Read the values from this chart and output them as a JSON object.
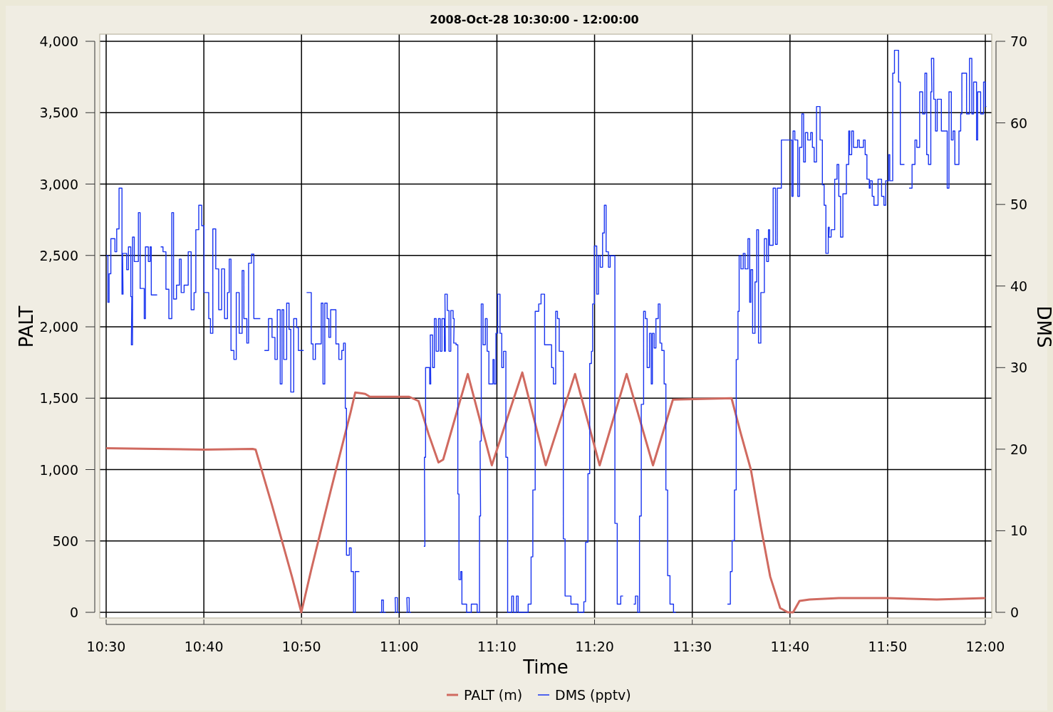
{
  "chart_data": {
    "type": "line",
    "title": "2008-Oct-28 10:30:00 - 12:00:00",
    "xlabel": "Time",
    "ylabel": "PALT",
    "y2label": "DMS",
    "grid": true,
    "legend": "bottom",
    "xlim": [
      10.5,
      12
    ],
    "xticks": [
      {
        "value": 10.5,
        "label": "10:30"
      },
      {
        "value": 10.6667,
        "label": "10:40"
      },
      {
        "value": 10.8333,
        "label": "10:50"
      },
      {
        "value": 11,
        "label": "11:00"
      },
      {
        "value": 11.1667,
        "label": "11:10"
      },
      {
        "value": 11.3333,
        "label": "11:20"
      },
      {
        "value": 11.5,
        "label": "11:30"
      },
      {
        "value": 11.6667,
        "label": "11:40"
      },
      {
        "value": 11.8333,
        "label": "11:50"
      },
      {
        "value": 12,
        "label": "12:00"
      }
    ],
    "ylim": [
      0,
      4000
    ],
    "yticks": [
      0,
      500,
      {
        "value": 1000,
        "label": "1,000"
      },
      {
        "value": 1500,
        "label": "1,500"
      },
      {
        "value": 2000,
        "label": "2,000"
      },
      {
        "value": 2500,
        "label": "2,500"
      },
      {
        "value": 3000,
        "label": "3,000"
      },
      {
        "value": 3500,
        "label": "3,500"
      },
      {
        "value": 4000,
        "label": "4,000"
      }
    ],
    "y2lim": [
      0,
      70
    ],
    "y2ticks": [
      0,
      10,
      20,
      30,
      40,
      50,
      60,
      70
    ],
    "series": [
      {
        "name": "PALT (m)",
        "color": "#d06a60",
        "x": [
          10.5,
          10.583,
          10.667,
          10.75,
          10.755,
          10.783,
          10.817,
          10.833,
          10.85,
          10.883,
          10.917,
          10.925,
          10.942,
          10.95,
          11.017,
          11.033,
          11.05,
          11.067,
          11.075,
          11.117,
          11.158,
          11.21,
          11.25,
          11.3,
          11.342,
          11.388,
          11.433,
          11.467,
          11.567,
          11.583,
          11.6,
          11.617,
          11.633,
          11.65,
          11.663,
          11.672,
          11.683,
          11.7,
          11.75,
          11.833,
          11.917,
          12
        ],
        "values": [
          1150,
          1145,
          1140,
          1145,
          1140,
          750,
          250,
          0,
          300,
          850,
          1400,
          1540,
          1530,
          1510,
          1510,
          1480,
          1250,
          1050,
          1070,
          1670,
          1030,
          1680,
          1030,
          1670,
          1030,
          1670,
          1030,
          1490,
          1500,
          1250,
          1000,
          600,
          250,
          30,
          0,
          0,
          80,
          90,
          100,
          100,
          90,
          100
        ]
      },
      {
        "name": "DMS (pptv)",
        "color": "#1a35f0",
        "type": "step",
        "axis": "y2",
        "x": [
          10.5,
          10.503,
          10.505,
          10.508,
          10.515,
          10.518,
          10.522,
          10.527,
          10.528,
          10.535,
          10.538,
          10.542,
          10.543,
          10.545,
          10.548,
          10.555,
          10.558,
          10.565,
          10.567,
          10.572,
          10.575,
          10.577,
          10.582,
          10.587,
          10.593,
          10.597,
          10.602,
          10.607,
          10.612,
          10.615,
          10.62,
          10.625,
          10.628,
          10.633,
          10.64,
          10.645,
          10.65,
          10.653,
          10.658,
          10.663,
          10.667,
          10.675,
          10.678,
          10.682,
          10.687,
          10.692,
          10.697,
          10.702,
          10.707,
          10.71,
          10.713,
          10.718,
          10.722,
          10.727,
          10.732,
          10.735,
          10.74,
          10.743,
          10.748,
          10.752,
          10.755,
          10.763,
          10.77,
          10.777,
          10.783,
          10.788,
          10.792,
          10.797,
          10.8,
          10.803,
          10.808,
          10.812,
          10.815,
          10.82,
          10.825,
          10.828,
          10.837,
          10.842,
          10.85,
          10.853,
          10.857,
          10.867,
          10.87,
          10.873,
          10.877,
          10.88,
          10.883,
          10.892,
          10.897,
          10.902,
          10.905,
          10.908,
          10.91,
          10.915,
          10.918,
          10.922,
          10.925,
          10.928,
          10.932,
          10.967,
          10.97,
          10.973,
          10.977,
          10.992,
          10.993,
          10.997,
          11.0,
          11.012,
          11.013,
          11.017,
          11.02,
          11.032,
          11.042,
          11.043,
          11.045,
          11.052,
          11.053,
          11.057,
          11.06,
          11.063,
          11.067,
          11.07,
          11.073,
          11.077,
          11.078,
          11.082,
          11.085,
          11.088,
          11.092,
          11.093,
          11.097,
          11.1,
          11.102,
          11.105,
          11.107,
          11.115,
          11.123,
          11.133,
          11.137,
          11.138,
          11.14,
          11.143,
          11.147,
          11.15,
          11.153,
          11.16,
          11.162,
          11.165,
          11.168,
          11.172,
          11.175,
          11.178,
          11.182,
          11.185,
          11.192,
          11.195,
          11.2,
          11.203,
          11.22,
          11.225,
          11.228,
          11.232,
          11.238,
          11.242,
          11.245,
          11.248,
          11.26,
          11.263,
          11.267,
          11.27,
          11.273,
          11.277,
          11.28,
          11.283,
          11.293,
          11.3,
          11.305,
          11.315,
          11.318,
          11.322,
          11.325,
          11.328,
          11.33,
          11.333,
          11.337,
          11.34,
          11.343,
          11.347,
          11.35,
          11.353,
          11.357,
          11.36,
          11.365,
          11.368,
          11.372,
          11.378,
          11.382,
          11.4,
          11.403,
          11.407,
          11.41,
          11.413,
          11.417,
          11.42,
          11.423,
          11.427,
          11.43,
          11.432,
          11.435,
          11.438,
          11.442,
          11.445,
          11.448,
          11.452,
          11.455,
          11.458,
          11.462,
          11.468,
          11.472,
          11.49,
          11.493,
          11.537,
          11.54,
          11.56,
          11.565,
          11.568,
          11.572,
          11.575,
          11.578,
          11.58,
          11.583,
          11.587,
          11.59,
          11.595,
          11.598,
          11.6,
          11.603,
          11.607,
          11.61,
          11.613,
          11.617,
          11.623,
          11.627,
          11.63,
          11.632,
          11.638,
          11.642,
          11.645,
          11.652,
          11.655,
          11.67,
          11.672,
          11.675,
          11.68,
          11.683,
          11.687,
          11.69,
          11.693,
          11.697,
          11.702,
          11.705,
          11.708,
          11.712,
          11.718,
          11.722,
          11.725,
          11.728,
          11.732,
          11.733,
          11.737,
          11.743,
          11.747,
          11.75,
          11.753,
          11.757,
          11.763,
          11.767,
          11.768,
          11.772,
          11.775,
          11.782,
          11.785,
          11.792,
          11.795,
          11.798,
          11.802,
          11.803,
          11.807,
          11.81,
          11.817,
          11.823,
          11.827,
          11.83,
          11.835,
          11.837,
          11.842,
          11.845,
          11.85,
          11.852,
          11.855,
          11.862,
          11.87,
          11.875,
          11.88,
          11.883,
          11.888,
          11.893,
          11.897,
          11.9,
          11.903,
          11.907,
          11.908,
          11.912,
          11.915,
          11.918,
          11.925,
          11.932,
          11.935,
          11.938,
          11.942,
          11.945,
          11.948,
          11.955,
          11.958,
          11.96,
          11.965,
          11.968,
          11.973,
          11.977,
          11.98,
          11.985,
          11.987,
          11.992,
          11.997,
          12.0
        ],
        "values": [
          43.7,
          38,
          41.5,
          45.8,
          44.2,
          47,
          52,
          39,
          44,
          42,
          44.8,
          38.7,
          32.8,
          46,
          43,
          49,
          39.7,
          36,
          44.8,
          43,
          44.8,
          38.9,
          38.9,
          null,
          44.8,
          44.2,
          39.6,
          36,
          49,
          38.4,
          40.1,
          43.3,
          39.2,
          40.1,
          44.2,
          37.1,
          39.2,
          46.9,
          49.9,
          47.4,
          39.2,
          36,
          34.2,
          47,
          42.1,
          37.1,
          42.1,
          36,
          39.2,
          43.3,
          32.1,
          31,
          39.2,
          34.2,
          41.9,
          36,
          33,
          42.8,
          43.9,
          36,
          36,
          null,
          32.1,
          36,
          33.7,
          31,
          37.1,
          28,
          37.1,
          31,
          37.9,
          34.7,
          27,
          36,
          34.9,
          32.1,
          null,
          39.2,
          32.9,
          31,
          32.9,
          37.9,
          28,
          37.9,
          36,
          33.7,
          37.1,
          32.9,
          31,
          32.1,
          33,
          25,
          7,
          7.9,
          5,
          0,
          5,
          5,
          null,
          0,
          1.5,
          0,
          null,
          0,
          1.8,
          0,
          null,
          0,
          1.8,
          0,
          null,
          null,
          8.1,
          19,
          30,
          28,
          34,
          30,
          36,
          32,
          36,
          32,
          36,
          32,
          39,
          37,
          32,
          37,
          36,
          33,
          32.8,
          14.5,
          4,
          5,
          1,
          0,
          1,
          0,
          11.8,
          21,
          37.8,
          32.8,
          36,
          32,
          28,
          31,
          28,
          34.2,
          39,
          34.2,
          30,
          32,
          19,
          0,
          2,
          0,
          2,
          0,
          1,
          6.8,
          15,
          36.9,
          37.8,
          39,
          39,
          32.8,
          30,
          28,
          36.9,
          36,
          32,
          32,
          9,
          2,
          1,
          1,
          0,
          1.3,
          8.6,
          17,
          30.5,
          32,
          37.8,
          44.9,
          39,
          43.7,
          42.3,
          46.5,
          49.9,
          44.2,
          42.3,
          43.7,
          43.7,
          10.9,
          1,
          2,
          null,
          1,
          2,
          0,
          11.8,
          25.5,
          36.9,
          36,
          30,
          34.2,
          28,
          34.2,
          32.4,
          36,
          37.8,
          33,
          32.1,
          28,
          15,
          4.5,
          1,
          0,
          null,
          null,
          null,
          null,
          null,
          1,
          5,
          8.8,
          15,
          31,
          36.9,
          43.7,
          42.1,
          44,
          42.1,
          45.8,
          38,
          42,
          34.2,
          40.5,
          46.9,
          33,
          39.2,
          45.8,
          43,
          46.9,
          45,
          52,
          45.1,
          52,
          57.9,
          57.9,
          51,
          59,
          57.9,
          51,
          57,
          61.1,
          55.2,
          58.8,
          57.9,
          58.8,
          57,
          55.2,
          62,
          57.9,
          52.4,
          49.9,
          44,
          47.2,
          46,
          46.9,
          53.1,
          54.9,
          51,
          46,
          51.3,
          54.9,
          59,
          56.1,
          59,
          57,
          57.9,
          57,
          57.9,
          56.1,
          53.1,
          52,
          52.9,
          51,
          49.9,
          53.1,
          51,
          49.9,
          52.9,
          56.1,
          52.9,
          66.1,
          68.9,
          68.9,
          65,
          54.9,
          null,
          52,
          54.9,
          57.9,
          57,
          63.8,
          61.1,
          66.1,
          56.1,
          54.9,
          63.8,
          67.9,
          62.9,
          59,
          62.9,
          59,
          59,
          52,
          63.8,
          57.9,
          59,
          54.9,
          59,
          61.1,
          66.1,
          66.1,
          61.1,
          67.9,
          61.1,
          65,
          57.9,
          63.8,
          61.1,
          65,
          62
        ]
      }
    ]
  }
}
